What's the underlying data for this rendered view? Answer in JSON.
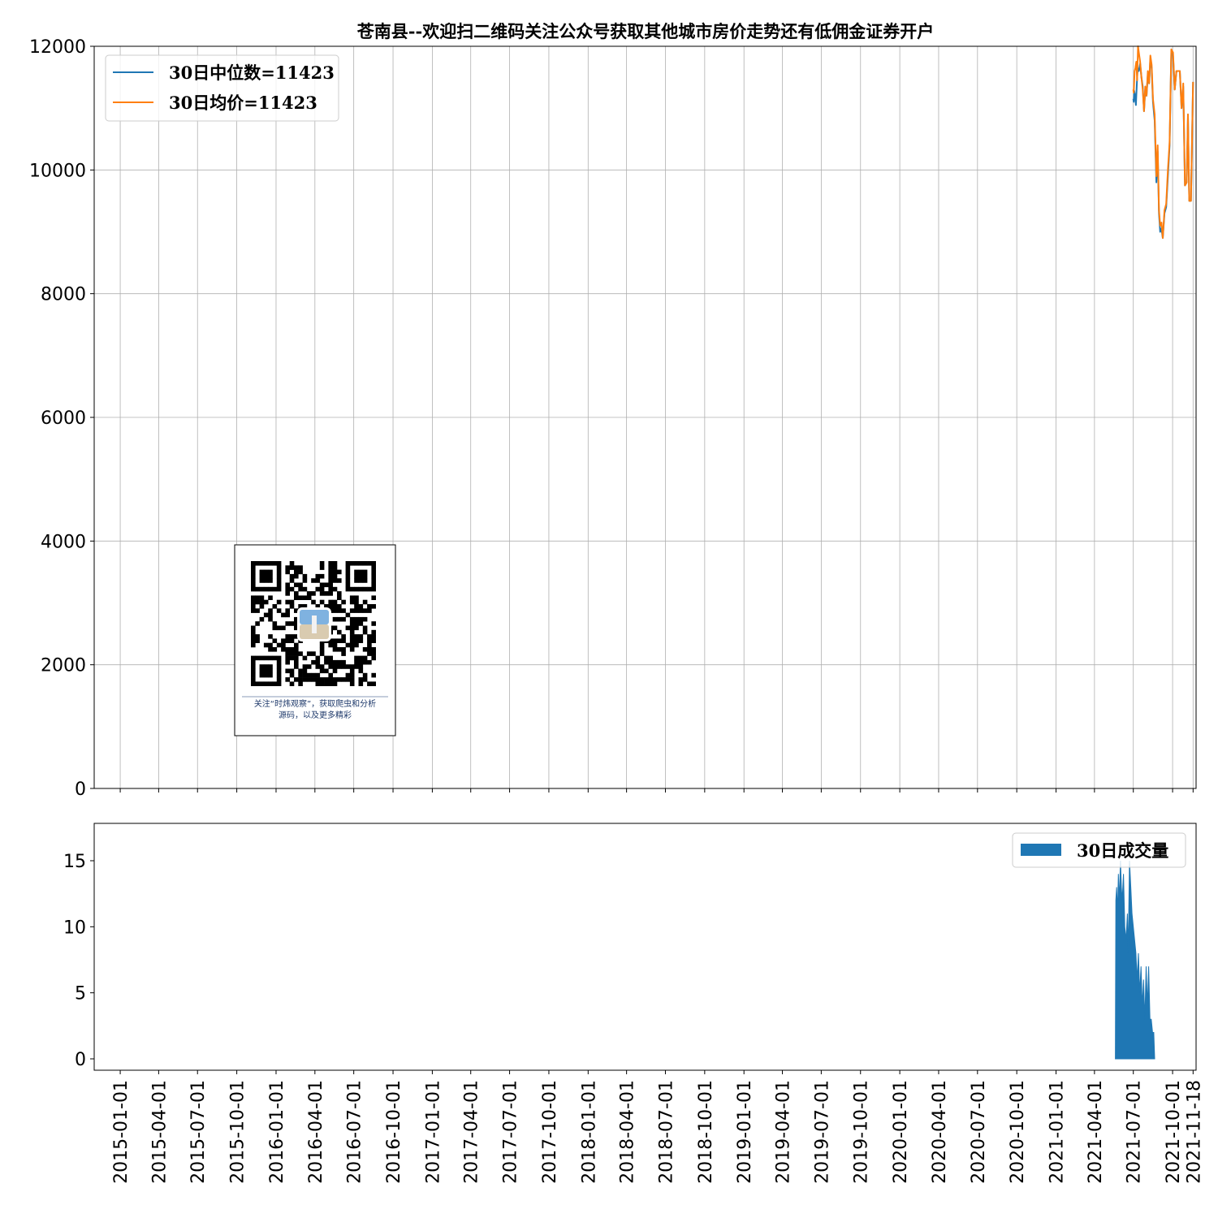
{
  "chart_data": [
    {
      "type": "line",
      "title": "苍南县--欢迎扫二维码关注公众号获取其他城市房价走势还有低佣金证券开户",
      "xlabel": "",
      "ylabel": "",
      "ylim": [
        0,
        12000
      ],
      "yticks": [
        0,
        2000,
        4000,
        6000,
        8000,
        10000,
        12000
      ],
      "xlim": [
        "2014-11-01",
        "2021-11-25"
      ],
      "grid": true,
      "legend_position": "upper left",
      "series": [
        {
          "name": "30日中位数=11423",
          "color": "#1f77b4",
          "points": [
            [
              "2021-07-01",
              11150
            ],
            [
              "2021-07-02",
              11100
            ],
            [
              "2021-07-03",
              11280
            ],
            [
              "2021-07-05",
              11200
            ],
            [
              "2021-07-07",
              11050
            ],
            [
              "2021-07-09",
              11350
            ],
            [
              "2021-07-11",
              11650
            ],
            [
              "2021-07-14",
              11600
            ],
            [
              "2021-07-17",
              11720
            ],
            [
              "2021-07-20",
              11500
            ],
            [
              "2021-07-23",
              11350
            ],
            [
              "2021-07-26",
              10950
            ],
            [
              "2021-07-29",
              11300
            ],
            [
              "2021-08-01",
              11200
            ],
            [
              "2021-08-04",
              11550
            ],
            [
              "2021-08-07",
              11400
            ],
            [
              "2021-08-10",
              11800
            ],
            [
              "2021-08-13",
              11650
            ],
            [
              "2021-08-16",
              11100
            ],
            [
              "2021-08-20",
              10800
            ],
            [
              "2021-08-24",
              9800
            ],
            [
              "2021-08-27",
              10300
            ],
            [
              "2021-08-30",
              9300
            ],
            [
              "2021-09-02",
              9000
            ],
            [
              "2021-09-05",
              9050
            ],
            [
              "2021-09-08",
              8900
            ],
            [
              "2021-09-12",
              9300
            ],
            [
              "2021-09-16",
              9400
            ],
            [
              "2021-09-20",
              9900
            ],
            [
              "2021-09-24",
              10400
            ],
            [
              "2021-09-28",
              11900
            ],
            [
              "2021-10-02",
              11850
            ],
            [
              "2021-10-06",
              11300
            ],
            [
              "2021-10-10",
              11600
            ],
            [
              "2021-10-14",
              11600
            ],
            [
              "2021-10-18",
              11600
            ],
            [
              "2021-10-22",
              11000
            ],
            [
              "2021-10-26",
              11350
            ],
            [
              "2021-10-30",
              9750
            ],
            [
              "2021-11-03",
              9800
            ],
            [
              "2021-11-06",
              10850
            ],
            [
              "2021-11-09",
              9500
            ],
            [
              "2021-11-13",
              9500
            ],
            [
              "2021-11-18",
              11423
            ]
          ]
        },
        {
          "name": "30日均价=11423",
          "color": "#ff7f0e",
          "points": [
            [
              "2021-07-01",
              11300
            ],
            [
              "2021-07-02",
              11250
            ],
            [
              "2021-07-04",
              11600
            ],
            [
              "2021-07-06",
              11650
            ],
            [
              "2021-07-08",
              11750
            ],
            [
              "2021-07-10",
              11450
            ],
            [
              "2021-07-12",
              12000
            ],
            [
              "2021-07-14",
              11900
            ],
            [
              "2021-07-17",
              11750
            ],
            [
              "2021-07-20",
              11500
            ],
            [
              "2021-07-23",
              11300
            ],
            [
              "2021-07-26",
              10950
            ],
            [
              "2021-07-29",
              11350
            ],
            [
              "2021-08-01",
              11200
            ],
            [
              "2021-08-04",
              11600
            ],
            [
              "2021-08-07",
              11400
            ],
            [
              "2021-08-10",
              11850
            ],
            [
              "2021-08-13",
              11700
            ],
            [
              "2021-08-16",
              11150
            ],
            [
              "2021-08-20",
              10900
            ],
            [
              "2021-08-24",
              9900
            ],
            [
              "2021-08-27",
              10400
            ],
            [
              "2021-08-30",
              9350
            ],
            [
              "2021-09-02",
              9100
            ],
            [
              "2021-09-05",
              9150
            ],
            [
              "2021-09-08",
              8900
            ],
            [
              "2021-09-12",
              9350
            ],
            [
              "2021-09-16",
              9450
            ],
            [
              "2021-09-20",
              10000
            ],
            [
              "2021-09-24",
              10450
            ],
            [
              "2021-09-28",
              11950
            ],
            [
              "2021-10-02",
              11900
            ],
            [
              "2021-10-06",
              11300
            ],
            [
              "2021-10-10",
              11600
            ],
            [
              "2021-10-14",
              11600
            ],
            [
              "2021-10-18",
              11600
            ],
            [
              "2021-10-22",
              11000
            ],
            [
              "2021-10-26",
              11400
            ],
            [
              "2021-10-30",
              9750
            ],
            [
              "2021-11-03",
              9800
            ],
            [
              "2021-11-06",
              10900
            ],
            [
              "2021-11-09",
              9500
            ],
            [
              "2021-11-13",
              9500
            ],
            [
              "2021-11-18",
              11423
            ]
          ]
        }
      ]
    },
    {
      "type": "area",
      "xlim": [
        "2014-11-01",
        "2021-11-25"
      ],
      "ylim": [
        0,
        17
      ],
      "yticks": [
        0,
        5,
        10,
        15
      ],
      "grid": false,
      "legend_position": "upper right",
      "x_tick_labels": [
        "2015-01-01",
        "2015-04-01",
        "2015-07-01",
        "2015-10-01",
        "2016-01-01",
        "2016-04-01",
        "2016-07-01",
        "2016-10-01",
        "2017-01-01",
        "2017-04-01",
        "2017-07-01",
        "2017-10-01",
        "2018-01-01",
        "2018-04-01",
        "2018-07-01",
        "2018-10-01",
        "2019-01-01",
        "2019-04-01",
        "2019-07-01",
        "2019-10-01",
        "2020-01-01",
        "2020-04-01",
        "2020-07-01",
        "2020-10-01",
        "2021-01-01",
        "2021-04-01",
        "2021-07-01",
        "2021-10-01",
        "2021-11-18"
      ],
      "series": [
        {
          "name": "30日成交量",
          "color": "#1f77b4",
          "points": [
            [
              "2021-05-20",
              0
            ],
            [
              "2021-05-21",
              12
            ],
            [
              "2021-05-23",
              13
            ],
            [
              "2021-05-25",
              11
            ],
            [
              "2021-05-27",
              14
            ],
            [
              "2021-05-29",
              12
            ],
            [
              "2021-06-01",
              15
            ],
            [
              "2021-06-03",
              13
            ],
            [
              "2021-06-05",
              12
            ],
            [
              "2021-06-08",
              14
            ],
            [
              "2021-06-11",
              10
            ],
            [
              "2021-06-14",
              9
            ],
            [
              "2021-06-17",
              11
            ],
            [
              "2021-06-19",
              8
            ],
            [
              "2021-06-22",
              15
            ],
            [
              "2021-06-25",
              13
            ],
            [
              "2021-06-28",
              11
            ],
            [
              "2021-07-01",
              10
            ],
            [
              "2021-07-04",
              9
            ],
            [
              "2021-07-07",
              8
            ],
            [
              "2021-07-10",
              6
            ],
            [
              "2021-07-13",
              8
            ],
            [
              "2021-07-16",
              5
            ],
            [
              "2021-07-19",
              7
            ],
            [
              "2021-07-22",
              4
            ],
            [
              "2021-07-25",
              6
            ],
            [
              "2021-07-28",
              3
            ],
            [
              "2021-07-31",
              7
            ],
            [
              "2021-08-03",
              4
            ],
            [
              "2021-08-06",
              7
            ],
            [
              "2021-08-09",
              3
            ],
            [
              "2021-08-12",
              3
            ],
            [
              "2021-08-15",
              2
            ],
            [
              "2021-08-18",
              2
            ],
            [
              "2021-08-20",
              0
            ]
          ]
        }
      ]
    }
  ],
  "qr_card": {
    "caption_line1": "关注“时炜观察”，获取爬虫和分析",
    "caption_line2": "源码，以及更多精彩"
  }
}
